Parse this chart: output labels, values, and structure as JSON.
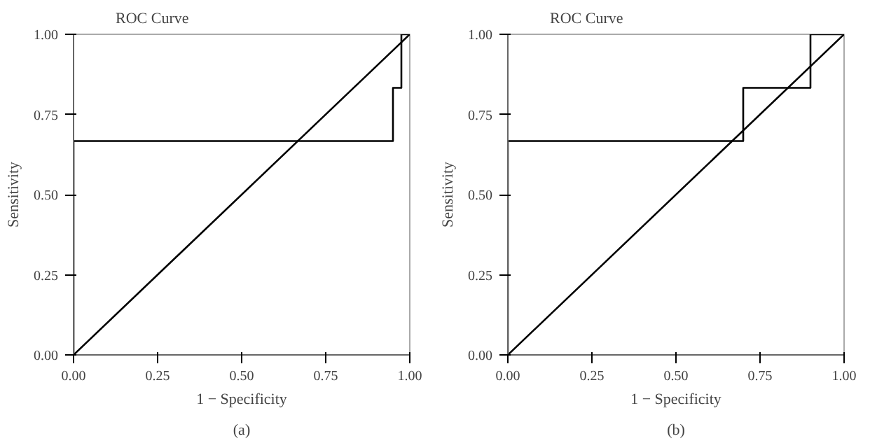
{
  "chart_data": [
    {
      "type": "line",
      "title": "ROC Curve",
      "xlabel": "1 − Specificity",
      "ylabel": "Sensitivity",
      "annotations": [
        "(a)"
      ],
      "xlim": [
        0,
        1
      ],
      "ylim": [
        0,
        1
      ],
      "xticks": [
        {
          "value": 0,
          "label": "0.00"
        },
        {
          "value": 0.25,
          "label": "0.25"
        },
        {
          "value": 0.5,
          "label": "0.50"
        },
        {
          "value": 0.75,
          "label": "0.75"
        },
        {
          "value": 1,
          "label": "1.00"
        }
      ],
      "yticks": [
        {
          "value": 0,
          "label": "0.00"
        },
        {
          "value": 0.25,
          "label": "0.25"
        },
        {
          "value": 0.5,
          "label": "0.50"
        },
        {
          "value": 0.75,
          "label": "0.75"
        },
        {
          "value": 1,
          "label": "1.00"
        }
      ],
      "grid": false,
      "marker": "none",
      "line_style": "solid",
      "series": [
        {
          "color": "#000000",
          "x": [
            0,
            0,
            0.95,
            0.95,
            0.975,
            0.975,
            1
          ],
          "values": [
            0,
            0.667,
            0.667,
            0.833,
            0.833,
            1,
            1
          ]
        },
        {
          "color": "#000000",
          "x": [
            0,
            1
          ],
          "values": [
            0,
            1
          ]
        }
      ]
    },
    {
      "type": "line",
      "title": "ROC Curve",
      "xlabel": "1 − Specificity",
      "ylabel": "Sensitivity",
      "annotations": [
        "(b)"
      ],
      "xlim": [
        0,
        1
      ],
      "ylim": [
        0,
        1
      ],
      "xticks": [
        {
          "value": 0,
          "label": "0.00"
        },
        {
          "value": 0.25,
          "label": "0.25"
        },
        {
          "value": 0.5,
          "label": "0.50"
        },
        {
          "value": 0.75,
          "label": "0.75"
        },
        {
          "value": 1,
          "label": "1.00"
        }
      ],
      "yticks": [
        {
          "value": 0,
          "label": "0.00"
        },
        {
          "value": 0.25,
          "label": "0.25"
        },
        {
          "value": 0.5,
          "label": "0.50"
        },
        {
          "value": 0.75,
          "label": "0.75"
        },
        {
          "value": 1,
          "label": "1.00"
        }
      ],
      "grid": false,
      "marker": "none",
      "line_style": "solid",
      "series": [
        {
          "color": "#000000",
          "x": [
            0,
            0,
            0.7,
            0.7,
            0.9,
            0.9,
            1
          ],
          "values": [
            0,
            0.667,
            0.667,
            0.833,
            0.833,
            1,
            1
          ]
        },
        {
          "color": "#000000",
          "x": [
            0,
            1
          ],
          "values": [
            0,
            1
          ]
        }
      ]
    }
  ]
}
